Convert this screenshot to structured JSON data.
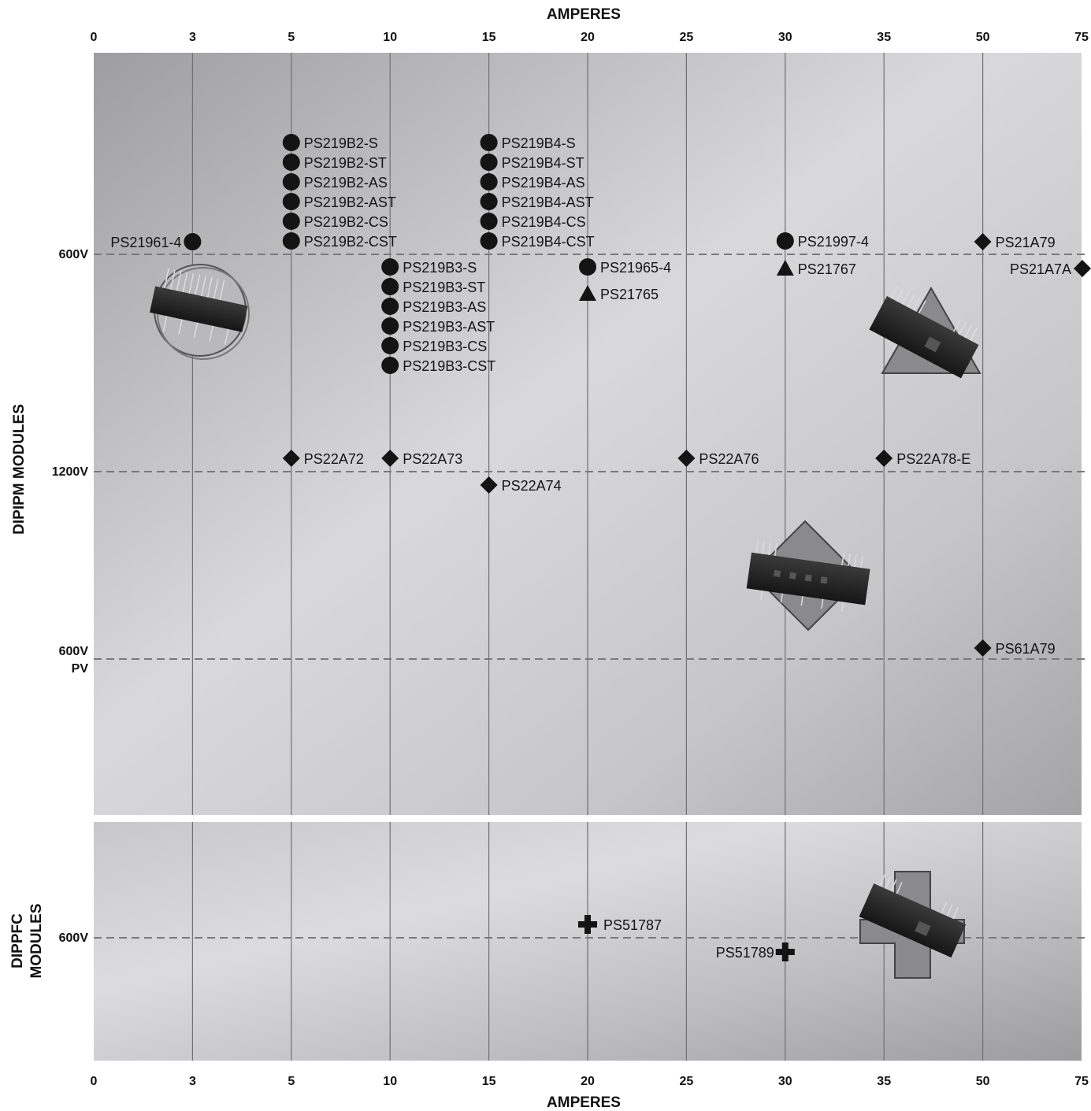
{
  "chart_data": {
    "type": "scatter",
    "x_axis": {
      "title": "AMPERES",
      "categorical_ticks": [
        "0",
        "3",
        "5",
        "10",
        "15",
        "20",
        "25",
        "30",
        "35",
        "50",
        "75"
      ]
    },
    "panels": [
      {
        "name": "DIPIPM MODULES",
        "y_categories": [
          "600V",
          "1200V",
          "600V PV"
        ],
        "points": [
          {
            "label": "PS21961-4",
            "x": "3",
            "y": "600V",
            "marker": "circle"
          },
          {
            "label": "PS219B2-S",
            "x": "5",
            "y": "600V",
            "marker": "circle"
          },
          {
            "label": "PS219B2-ST",
            "x": "5",
            "y": "600V",
            "marker": "circle"
          },
          {
            "label": "PS219B2-AS",
            "x": "5",
            "y": "600V",
            "marker": "circle"
          },
          {
            "label": "PS219B2-AST",
            "x": "5",
            "y": "600V",
            "marker": "circle"
          },
          {
            "label": "PS219B2-CS",
            "x": "5",
            "y": "600V",
            "marker": "circle"
          },
          {
            "label": "PS219B2-CST",
            "x": "5",
            "y": "600V",
            "marker": "circle"
          },
          {
            "label": "PS219B3-S",
            "x": "10",
            "y": "600V",
            "marker": "circle"
          },
          {
            "label": "PS219B3-ST",
            "x": "10",
            "y": "600V",
            "marker": "circle"
          },
          {
            "label": "PS219B3-AS",
            "x": "10",
            "y": "600V",
            "marker": "circle"
          },
          {
            "label": "PS219B3-AST",
            "x": "10",
            "y": "600V",
            "marker": "circle"
          },
          {
            "label": "PS219B3-CS",
            "x": "10",
            "y": "600V",
            "marker": "circle"
          },
          {
            "label": "PS219B3-CST",
            "x": "10",
            "y": "600V",
            "marker": "circle"
          },
          {
            "label": "PS219B4-S",
            "x": "15",
            "y": "600V",
            "marker": "circle"
          },
          {
            "label": "PS219B4-ST",
            "x": "15",
            "y": "600V",
            "marker": "circle"
          },
          {
            "label": "PS219B4-AS",
            "x": "15",
            "y": "600V",
            "marker": "circle"
          },
          {
            "label": "PS219B4-AST",
            "x": "15",
            "y": "600V",
            "marker": "circle"
          },
          {
            "label": "PS219B4-CS",
            "x": "15",
            "y": "600V",
            "marker": "circle"
          },
          {
            "label": "PS219B4-CST",
            "x": "15",
            "y": "600V",
            "marker": "circle"
          },
          {
            "label": "PS21965-4",
            "x": "20",
            "y": "600V",
            "marker": "circle"
          },
          {
            "label": "PS21765",
            "x": "20",
            "y": "600V",
            "marker": "triangle"
          },
          {
            "label": "PS21997-4",
            "x": "30",
            "y": "600V",
            "marker": "circle"
          },
          {
            "label": "PS21767",
            "x": "30",
            "y": "600V",
            "marker": "triangle"
          },
          {
            "label": "PS21A79",
            "x": "50",
            "y": "600V",
            "marker": "diamond"
          },
          {
            "label": "PS21A7A",
            "x": "75",
            "y": "600V",
            "marker": "diamond"
          },
          {
            "label": "PS22A72",
            "x": "5",
            "y": "1200V",
            "marker": "diamond"
          },
          {
            "label": "PS22A73",
            "x": "10",
            "y": "1200V",
            "marker": "diamond"
          },
          {
            "label": "PS22A74",
            "x": "15",
            "y": "1200V",
            "marker": "diamond"
          },
          {
            "label": "PS22A76",
            "x": "25",
            "y": "1200V",
            "marker": "diamond"
          },
          {
            "label": "PS22A78-E",
            "x": "35",
            "y": "1200V",
            "marker": "diamond"
          },
          {
            "label": "PS61A79",
            "x": "50",
            "y": "600V PV",
            "marker": "diamond"
          }
        ]
      },
      {
        "name": "DIPPFC MODULES",
        "y_categories": [
          "600V"
        ],
        "points": [
          {
            "label": "PS51787",
            "x": "20",
            "y": "600V",
            "marker": "plus"
          },
          {
            "label": "PS51789",
            "x": "30",
            "y": "600V",
            "marker": "plus"
          }
        ]
      }
    ],
    "grid": true,
    "colors": {
      "marker": "#141414",
      "grid": "#707070",
      "dashed": "#7a7a7a"
    }
  }
}
